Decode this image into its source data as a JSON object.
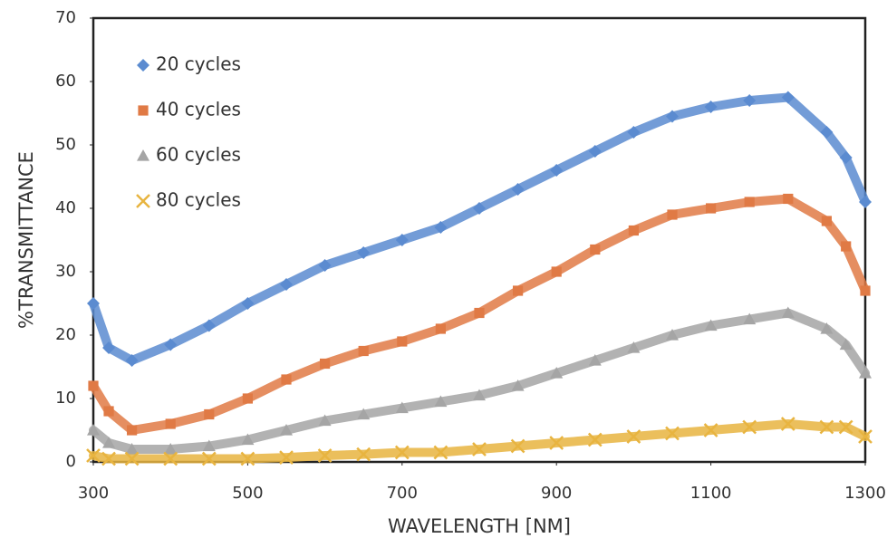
{
  "chart_data": {
    "type": "line",
    "x_label": "WAVELENGTH [NM]",
    "y_label": "%TRANSMITTANCE",
    "x": [
      300,
      320,
      350,
      400,
      450,
      500,
      550,
      600,
      650,
      700,
      750,
      800,
      850,
      900,
      950,
      1000,
      1050,
      1100,
      1150,
      1200,
      1250,
      1275,
      1300
    ],
    "series": [
      {
        "name": "20 cycles",
        "color": "#5b8bd0",
        "marker": "diamond",
        "values": [
          25,
          18,
          16,
          18.5,
          21.5,
          25,
          28,
          31,
          33,
          35,
          37,
          40,
          43,
          46,
          49,
          52,
          54.5,
          56,
          57,
          57.5,
          52,
          48,
          41
        ]
      },
      {
        "name": "40 cycles",
        "color": "#e07a45",
        "marker": "square",
        "values": [
          12,
          8,
          5,
          6,
          7.5,
          10,
          13,
          15.5,
          17.5,
          19,
          21,
          23.5,
          27,
          30,
          33.5,
          36.5,
          39,
          40,
          41,
          41.5,
          38,
          34,
          27
        ]
      },
      {
        "name": "60 cycles",
        "color": "#a5a5a5",
        "marker": "triangle",
        "values": [
          5,
          3,
          2,
          2,
          2.5,
          3.5,
          5,
          6.5,
          7.5,
          8.5,
          9.5,
          10.5,
          12,
          14,
          16,
          18,
          20,
          21.5,
          22.5,
          23.5,
          21,
          18.5,
          14
        ]
      },
      {
        "name": "80 cycles",
        "color": "#e8b440",
        "marker": "cross",
        "values": [
          1,
          0.5,
          0.5,
          0.5,
          0.5,
          0.5,
          0.7,
          1,
          1.2,
          1.5,
          1.5,
          2,
          2.5,
          3,
          3.5,
          4,
          4.5,
          5,
          5.5,
          6,
          5.5,
          5.5,
          4
        ]
      }
    ],
    "xlim": [
      300,
      1300
    ],
    "xticks": [
      300,
      500,
      700,
      900,
      1100,
      1300
    ],
    "ylim": [
      0,
      70
    ],
    "yticks": [
      0,
      10,
      20,
      30,
      40,
      50,
      60,
      70
    ]
  }
}
